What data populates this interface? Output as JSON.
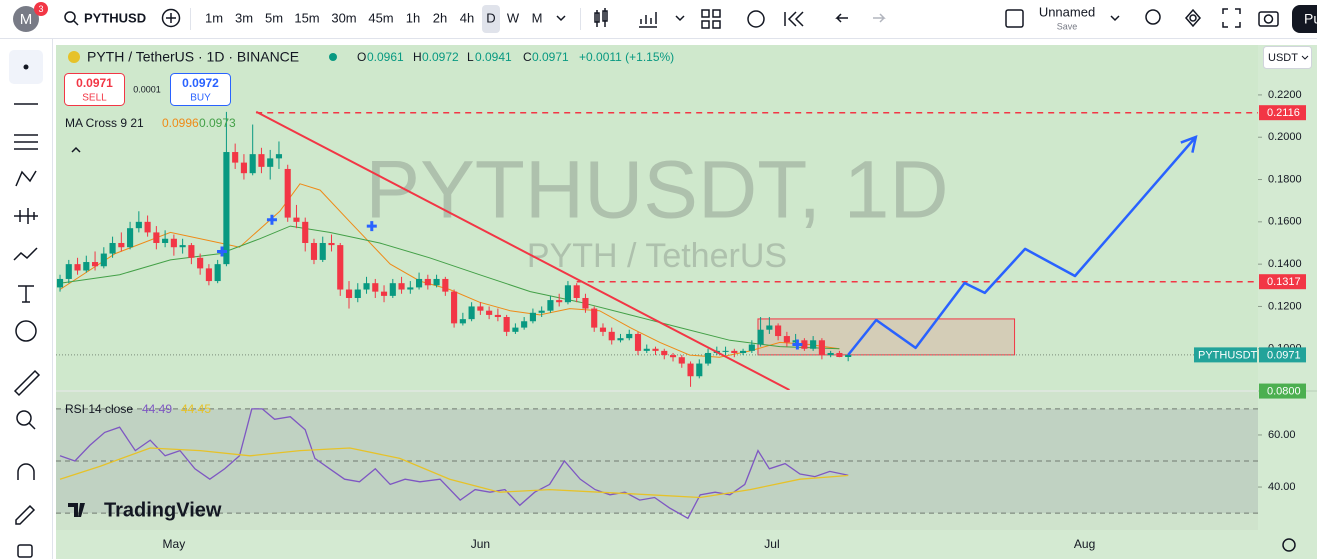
{
  "top_bar": {
    "avatar": "M",
    "badge": "3",
    "symbol": "PYTHUSD",
    "intervals": [
      "1m",
      "3m",
      "5m",
      "15m",
      "30m",
      "45m",
      "1h",
      "2h",
      "4h",
      "D",
      "W",
      "M"
    ],
    "active_interval": "D",
    "layout_name": "Unnamed",
    "save": "Save",
    "publish": "Pu"
  },
  "legend": {
    "title": "PYTH / TetherUS · 1D · BINANCE",
    "o_label": "O",
    "open": "0.0961",
    "h_label": "H",
    "high": "0.0972",
    "l_label": "L",
    "low": "0.0941",
    "c_label": "C",
    "close": "0.0971",
    "change": "+0.0011 (+1.15%)",
    "sell_price": "0.0971",
    "sell": "SELL",
    "spread": "0.0001",
    "buy_price": "0.0972",
    "buy": "BUY",
    "ma_name": "MA Cross 9 21",
    "ma_fast": "0.0996",
    "ma_slow": "0.0973",
    "rsi_name": "RSI 14 close",
    "rsi_value": "44.49",
    "rsi_ma": "44.45"
  },
  "currency": "USDT",
  "watermark": {
    "symbol": "PYTHUSDT, 1D",
    "name": "PYTH / TetherUS"
  },
  "brand": "TradingView",
  "chart_data": {
    "type": "candlestick",
    "up_color": "#089981",
    "down_color": "#f23645",
    "xlim": [
      -0.46,
      136.8
    ],
    "xticks": [
      {
        "value": 13,
        "label": "May"
      },
      {
        "value": 48,
        "label": "Jun"
      },
      {
        "value": 81.3,
        "label": "Jul"
      },
      {
        "value": 117,
        "label": "Aug"
      }
    ],
    "ylim": [
      0.0805,
      0.2436
    ],
    "yticks": [
      {
        "value": 0.22,
        "label": "0.2200"
      },
      {
        "value": 0.2,
        "label": "0.2000"
      },
      {
        "value": 0.18,
        "label": "0.1800"
      },
      {
        "value": 0.16,
        "label": "0.1600"
      },
      {
        "value": 0.14,
        "label": "0.1400"
      },
      {
        "value": 0.12,
        "label": "0.1200"
      },
      {
        "value": 0.1,
        "label": "0.1000"
      }
    ],
    "ohlc": [
      [
        0.129,
        0.135,
        0.127,
        0.133
      ],
      [
        0.133,
        0.142,
        0.131,
        0.14
      ],
      [
        0.14,
        0.143,
        0.135,
        0.137
      ],
      [
        0.137,
        0.144,
        0.136,
        0.141
      ],
      [
        0.141,
        0.146,
        0.137,
        0.139
      ],
      [
        0.139,
        0.148,
        0.138,
        0.145
      ],
      [
        0.145,
        0.153,
        0.143,
        0.15
      ],
      [
        0.15,
        0.155,
        0.146,
        0.148
      ],
      [
        0.148,
        0.16,
        0.147,
        0.157
      ],
      [
        0.157,
        0.165,
        0.155,
        0.16
      ],
      [
        0.16,
        0.163,
        0.153,
        0.155
      ],
      [
        0.155,
        0.158,
        0.147,
        0.15
      ],
      [
        0.15,
        0.156,
        0.148,
        0.152
      ],
      [
        0.152,
        0.154,
        0.144,
        0.148
      ],
      [
        0.148,
        0.152,
        0.145,
        0.149
      ],
      [
        0.149,
        0.15,
        0.14,
        0.143
      ],
      [
        0.143,
        0.145,
        0.135,
        0.138
      ],
      [
        0.138,
        0.14,
        0.13,
        0.132
      ],
      [
        0.132,
        0.142,
        0.131,
        0.14
      ],
      [
        0.14,
        0.212,
        0.139,
        0.193
      ],
      [
        0.193,
        0.197,
        0.185,
        0.188
      ],
      [
        0.188,
        0.192,
        0.18,
        0.183
      ],
      [
        0.183,
        0.206,
        0.182,
        0.192
      ],
      [
        0.192,
        0.195,
        0.183,
        0.186
      ],
      [
        0.186,
        0.194,
        0.18,
        0.19
      ],
      [
        0.19,
        0.198,
        0.185,
        0.192
      ],
      [
        0.185,
        0.187,
        0.16,
        0.162
      ],
      [
        0.162,
        0.168,
        0.157,
        0.16
      ],
      [
        0.16,
        0.162,
        0.146,
        0.15
      ],
      [
        0.15,
        0.152,
        0.14,
        0.142
      ],
      [
        0.142,
        0.153,
        0.141,
        0.15
      ],
      [
        0.15,
        0.154,
        0.146,
        0.149
      ],
      [
        0.149,
        0.15,
        0.125,
        0.128
      ],
      [
        0.128,
        0.132,
        0.119,
        0.124
      ],
      [
        0.124,
        0.131,
        0.122,
        0.128
      ],
      [
        0.128,
        0.134,
        0.126,
        0.131
      ],
      [
        0.131,
        0.133,
        0.124,
        0.127
      ],
      [
        0.127,
        0.13,
        0.122,
        0.125
      ],
      [
        0.125,
        0.133,
        0.124,
        0.131
      ],
      [
        0.131,
        0.134,
        0.126,
        0.128
      ],
      [
        0.128,
        0.132,
        0.126,
        0.129
      ],
      [
        0.129,
        0.136,
        0.128,
        0.133
      ],
      [
        0.133,
        0.135,
        0.128,
        0.13
      ],
      [
        0.13,
        0.135,
        0.129,
        0.133
      ],
      [
        0.133,
        0.134,
        0.125,
        0.127
      ],
      [
        0.127,
        0.128,
        0.11,
        0.112
      ],
      [
        0.112,
        0.117,
        0.111,
        0.114
      ],
      [
        0.114,
        0.122,
        0.113,
        0.12
      ],
      [
        0.12,
        0.122,
        0.116,
        0.118
      ],
      [
        0.118,
        0.12,
        0.114,
        0.116
      ],
      [
        0.116,
        0.119,
        0.113,
        0.115
      ],
      [
        0.115,
        0.116,
        0.106,
        0.108
      ],
      [
        0.108,
        0.112,
        0.107,
        0.11
      ],
      [
        0.11,
        0.115,
        0.109,
        0.113
      ],
      [
        0.113,
        0.119,
        0.112,
        0.117
      ],
      [
        0.117,
        0.12,
        0.115,
        0.118
      ],
      [
        0.118,
        0.125,
        0.117,
        0.123
      ],
      [
        0.123,
        0.126,
        0.12,
        0.122
      ],
      [
        0.122,
        0.132,
        0.121,
        0.13
      ],
      [
        0.13,
        0.131,
        0.122,
        0.124
      ],
      [
        0.124,
        0.126,
        0.117,
        0.119
      ],
      [
        0.119,
        0.12,
        0.108,
        0.11
      ],
      [
        0.11,
        0.112,
        0.106,
        0.108
      ],
      [
        0.108,
        0.11,
        0.102,
        0.104
      ],
      [
        0.104,
        0.107,
        0.103,
        0.105
      ],
      [
        0.105,
        0.109,
        0.104,
        0.107
      ],
      [
        0.107,
        0.108,
        0.097,
        0.099
      ],
      [
        0.099,
        0.102,
        0.098,
        0.1
      ],
      [
        0.1,
        0.101,
        0.097,
        0.099
      ],
      [
        0.099,
        0.1,
        0.095,
        0.097
      ],
      [
        0.097,
        0.098,
        0.094,
        0.096
      ],
      [
        0.096,
        0.097,
        0.091,
        0.093
      ],
      [
        0.093,
        0.094,
        0.082,
        0.087
      ],
      [
        0.087,
        0.095,
        0.086,
        0.093
      ],
      [
        0.093,
        0.1,
        0.092,
        0.098
      ],
      [
        0.098,
        0.101,
        0.097,
        0.099
      ],
      [
        0.099,
        0.101,
        0.097,
        0.099
      ],
      [
        0.099,
        0.1,
        0.096,
        0.098
      ],
      [
        0.098,
        0.1,
        0.097,
        0.099
      ],
      [
        0.099,
        0.104,
        0.098,
        0.102
      ],
      [
        0.102,
        0.115,
        0.101,
        0.109
      ],
      [
        0.109,
        0.115,
        0.107,
        0.111
      ],
      [
        0.111,
        0.112,
        0.104,
        0.106
      ],
      [
        0.106,
        0.108,
        0.101,
        0.103
      ],
      [
        0.103,
        0.107,
        0.102,
        0.104
      ],
      [
        0.104,
        0.105,
        0.099,
        0.1
      ],
      [
        0.1,
        0.106,
        0.099,
        0.104
      ],
      [
        0.104,
        0.105,
        0.095,
        0.097
      ],
      [
        0.097,
        0.099,
        0.096,
        0.098
      ],
      [
        0.098,
        0.099,
        0.096,
        0.0961
      ],
      [
        0.0961,
        0.0972,
        0.0941,
        0.0971
      ]
    ],
    "ma_series": [
      {
        "color": "#ef8a17",
        "x": [
          0,
          6.3,
          12.6,
          18.3,
          20.5,
          25.1,
          27.4,
          29.7,
          33.1,
          37.7,
          41.1,
          44.5,
          47.9,
          51.4,
          54.8,
          58.2,
          61.6,
          65.1,
          68.5,
          71.9,
          75.3,
          78.8,
          82.2,
          85.6,
          89
        ],
        "values": [
          0.128,
          0.145,
          0.155,
          0.15,
          0.148,
          0.165,
          0.178,
          0.175,
          0.16,
          0.14,
          0.132,
          0.128,
          0.122,
          0.118,
          0.116,
          0.119,
          0.118,
          0.11,
          0.103,
          0.097,
          0.096,
          0.099,
          0.103,
          0.102,
          0.1
        ]
      },
      {
        "color": "#43a047",
        "x": [
          0,
          6.8,
          12.6,
          18.3,
          22.8,
          26.3,
          30.8,
          36.5,
          42.2,
          47.9,
          53.7,
          59.4,
          65.1,
          70.8,
          76.5,
          82.2,
          89
        ],
        "values": [
          0.131,
          0.135,
          0.142,
          0.145,
          0.152,
          0.158,
          0.155,
          0.15,
          0.143,
          0.135,
          0.127,
          0.122,
          0.116,
          0.11,
          0.104,
          0.101,
          0.1
        ]
      }
    ],
    "cross_markers": {
      "color": "#2962ff",
      "x": [
        18.5,
        24.2,
        35.6,
        84.2
      ],
      "values": [
        0.146,
        0.161,
        0.158,
        0.102
      ]
    },
    "last_price": {
      "name": "PYTHUSDT",
      "value": 0.0971,
      "label": "0.0971",
      "color": "#22a39a"
    },
    "levels": [
      {
        "value": 0.2116,
        "label": "0.2116",
        "color": "#f23645",
        "style": "dashed",
        "from": 22.4
      },
      {
        "value": 0.1317,
        "label": "0.1317",
        "color": "#f23645",
        "style": "dashed",
        "from": 59
      },
      {
        "value": 0.08,
        "label": "0.0800",
        "color": "#4caf50",
        "style": "solid",
        "from": -0.46
      }
    ],
    "trendline": {
      "color": "#f23645",
      "x": [
        22.4,
        83.3
      ],
      "values": [
        0.212,
        0.0805
      ]
    },
    "rectangle": {
      "color": "#f23645",
      "x": [
        79.7,
        109
      ],
      "values": [
        0.0971,
        0.1141
      ]
    },
    "projection": {
      "color": "#2962ff",
      "x": [
        90,
        93.2,
        97.7,
        103.3,
        105.6,
        110.2,
        115.9,
        129.7
      ],
      "values": [
        0.0971,
        0.1136,
        0.1004,
        0.1311,
        0.1264,
        0.1472,
        0.1344,
        0.2001
      ]
    },
    "rsi": {
      "ylim": [
        23.5,
        76.5
      ],
      "yticks": [
        {
          "value": 60,
          "label": "60.00"
        },
        {
          "value": 40,
          "label": "40.00"
        }
      ],
      "bands": [
        70,
        50,
        30
      ],
      "series": [
        {
          "color": "#7e57c2",
          "x": [
            0,
            1.7,
            3.4,
            5.1,
            6.8,
            8.6,
            10.3,
            12,
            13.7,
            15.4,
            17.1,
            18.8,
            20.5,
            21.9,
            23.1,
            24.5,
            26.3,
            28,
            29.1,
            30.8,
            32.5,
            34.2,
            36,
            37.7,
            39.4,
            41.1,
            43.4,
            45.7,
            47.4,
            49.1,
            50.8,
            52.5,
            54.2,
            55.9,
            57.6,
            59.4,
            61.1,
            62.8,
            64.5,
            66.2,
            67.9,
            69.6,
            71.7,
            73.1,
            74.8,
            76.5,
            78.2,
            79.7,
            81,
            82.8,
            84.5,
            86.2,
            87.9,
            90
          ],
          "values": [
            52,
            50,
            56,
            61,
            63,
            54,
            58,
            52,
            54,
            47,
            43,
            47,
            52,
            70,
            70,
            66,
            67,
            62,
            51,
            47,
            43,
            42,
            47,
            41,
            43,
            42,
            43,
            35,
            39,
            38,
            39,
            33,
            38,
            41,
            50,
            43,
            39,
            37,
            38,
            35,
            36,
            32,
            28,
            37,
            38,
            37,
            41,
            54,
            47,
            49,
            45,
            44,
            46,
            44.49
          ]
        },
        {
          "color": "#e6c229",
          "x": [
            0,
            4.6,
            10.3,
            16,
            21.7,
            27.4,
            33.1,
            38.8,
            44.5,
            50.2,
            55.9,
            61.6,
            67.4,
            73.1,
            78.8,
            84.5,
            90
          ],
          "values": [
            43,
            48,
            55,
            54,
            52,
            54,
            55,
            51,
            43,
            38,
            39,
            38,
            37,
            36,
            39,
            43,
            44.45
          ]
        }
      ]
    }
  }
}
